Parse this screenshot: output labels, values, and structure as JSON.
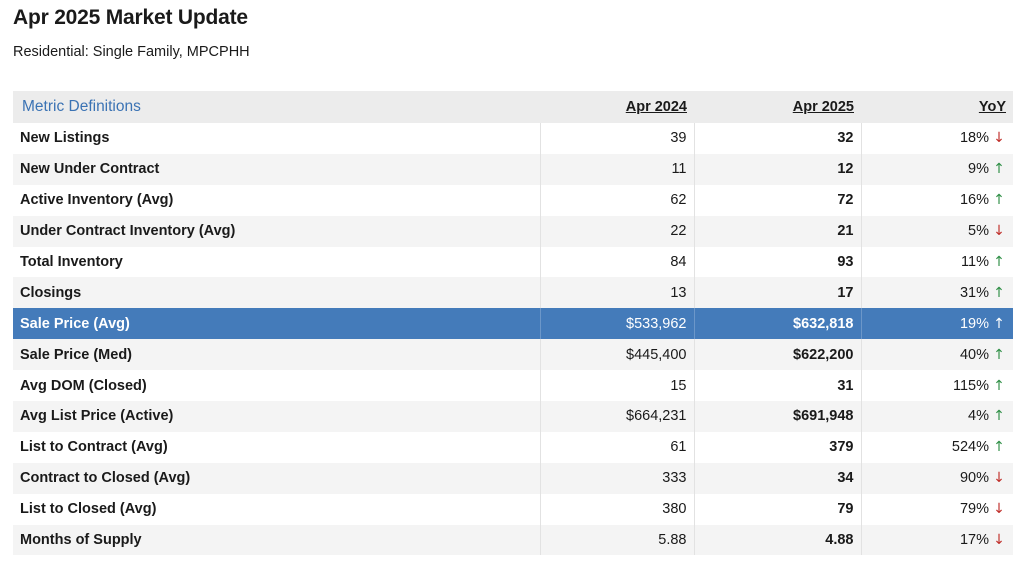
{
  "page": {
    "title": "Apr 2025 Market Update",
    "subtitle": "Residential: Single Family, MPCPHH"
  },
  "table": {
    "headers": {
      "metric": "Metric Definitions",
      "prev": "Apr 2024",
      "curr": "Apr 2025",
      "yoy": "YoY"
    },
    "rows": [
      {
        "metric": "New Listings",
        "prev": "39",
        "curr": "32",
        "yoy": "18%",
        "trend": "down"
      },
      {
        "metric": "New Under Contract",
        "prev": "11",
        "curr": "12",
        "yoy": "9%",
        "trend": "up"
      },
      {
        "metric": "Active Inventory (Avg)",
        "prev": "62",
        "curr": "72",
        "yoy": "16%",
        "trend": "up"
      },
      {
        "metric": "Under Contract Inventory (Avg)",
        "prev": "22",
        "curr": "21",
        "yoy": "5%",
        "trend": "down"
      },
      {
        "metric": "Total Inventory",
        "prev": "84",
        "curr": "93",
        "yoy": "11%",
        "trend": "up"
      },
      {
        "metric": "Closings",
        "prev": "13",
        "curr": "17",
        "yoy": "31%",
        "trend": "up"
      },
      {
        "metric": "Sale Price (Avg)",
        "prev": "$533,962",
        "curr": "$632,818",
        "yoy": "19%",
        "trend": "up",
        "highlighted": true
      },
      {
        "metric": "Sale Price (Med)",
        "prev": "$445,400",
        "curr": "$622,200",
        "yoy": "40%",
        "trend": "up"
      },
      {
        "metric": "Avg DOM (Closed)",
        "prev": "15",
        "curr": "31",
        "yoy": "115%",
        "trend": "up"
      },
      {
        "metric": "Avg List Price (Active)",
        "prev": "$664,231",
        "curr": "$691,948",
        "yoy": "4%",
        "trend": "up"
      },
      {
        "metric": "List to Contract (Avg)",
        "prev": "61",
        "curr": "379",
        "yoy": "524%",
        "trend": "up"
      },
      {
        "metric": "Contract to Closed (Avg)",
        "prev": "333",
        "curr": "34",
        "yoy": "90%",
        "trend": "down"
      },
      {
        "metric": "List to Closed (Avg)",
        "prev": "380",
        "curr": "79",
        "yoy": "79%",
        "trend": "down"
      },
      {
        "metric": "Months of Supply",
        "prev": "5.88",
        "curr": "4.88",
        "yoy": "17%",
        "trend": "down"
      }
    ]
  },
  "icons": {
    "up": "arrow-up-icon",
    "down": "arrow-down-icon"
  },
  "colors": {
    "header_bg": "#ececec",
    "stripe_bg": "#f4f4f4",
    "highlight_bg": "#447bba",
    "link": "#3b73b4",
    "trend_up": "#2f8f46",
    "trend_down": "#c0302b"
  }
}
